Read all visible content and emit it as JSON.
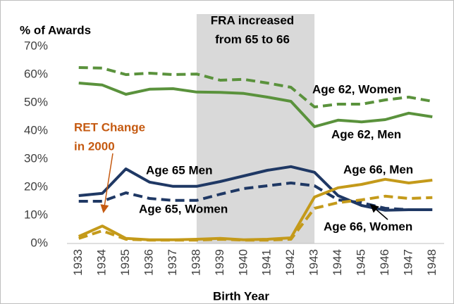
{
  "chart_data": {
    "type": "line",
    "y_axis_label": "% of Awards",
    "x_axis_label": "Birth Year",
    "annotations": [
      {
        "lines": [
          "FRA increased",
          "from 65 to 66"
        ],
        "color": "#000000"
      },
      {
        "lines": [
          "RET Change",
          "in 2000"
        ],
        "color": "#c55a11"
      }
    ],
    "shaded_range": [
      "1938",
      "1943"
    ],
    "categories": [
      "1933",
      "1934",
      "1935",
      "1936",
      "1937",
      "1938",
      "1939",
      "1940",
      "1941",
      "1942",
      "1943",
      "1944",
      "1945",
      "1946",
      "1947",
      "1948"
    ],
    "ylim": [
      0,
      70
    ],
    "yticks": [
      {
        "value": 0,
        "label": "0%"
      },
      {
        "value": 10,
        "label": "10%"
      },
      {
        "value": 20,
        "label": "20%"
      },
      {
        "value": 30,
        "label": "30%"
      },
      {
        "value": 40,
        "label": "40%"
      },
      {
        "value": 50,
        "label": "50%"
      },
      {
        "value": 60,
        "label": "60%"
      },
      {
        "value": 70,
        "label": "70%"
      }
    ],
    "series": [
      {
        "name": "Age 62, Women",
        "color": "#5a923c",
        "dashed": true,
        "values": [
          62.5,
          62.3,
          60,
          60.5,
          60,
          60.2,
          58,
          58.3,
          57,
          55.5,
          48.5,
          49.5,
          49.5,
          51,
          52,
          50.5
        ]
      },
      {
        "name": "Age 62, Men",
        "color": "#5a923c",
        "dashed": false,
        "values": [
          57,
          56.3,
          53,
          54.8,
          55,
          53.8,
          53.7,
          53.3,
          52,
          50.5,
          41.5,
          43.8,
          43.2,
          44,
          46.3,
          45
        ]
      },
      {
        "name": "Age 65 Men",
        "color": "#1f3864",
        "dashed": false,
        "values": [
          17,
          17.8,
          26.5,
          21.8,
          20.3,
          20.3,
          22,
          24,
          26,
          27.3,
          25.3,
          17,
          13.5,
          11.8,
          12,
          12
        ]
      },
      {
        "name": "Age 65, Women",
        "color": "#1f3864",
        "dashed": true,
        "values": [
          15,
          15,
          18,
          16,
          15.3,
          15.3,
          17.5,
          19.5,
          20.5,
          21.5,
          20.5,
          15.5,
          14.5,
          12.5,
          12,
          12
        ]
      },
      {
        "name": "Age 66, Men",
        "color": "#c49a1a",
        "dashed": false,
        "values": [
          2.5,
          6.2,
          1.8,
          1.3,
          1.3,
          1.5,
          1.8,
          1.3,
          1.5,
          2,
          16.5,
          19.8,
          21,
          22.8,
          21.5,
          22.5
        ]
      },
      {
        "name": "Age 66, Women",
        "color": "#c49a1a",
        "dashed": true,
        "values": [
          1.8,
          4.5,
          1.5,
          1.2,
          1.2,
          1.2,
          1.5,
          1.2,
          1.2,
          1.5,
          12.5,
          14.5,
          15.5,
          16.8,
          16,
          16.3
        ]
      }
    ]
  }
}
